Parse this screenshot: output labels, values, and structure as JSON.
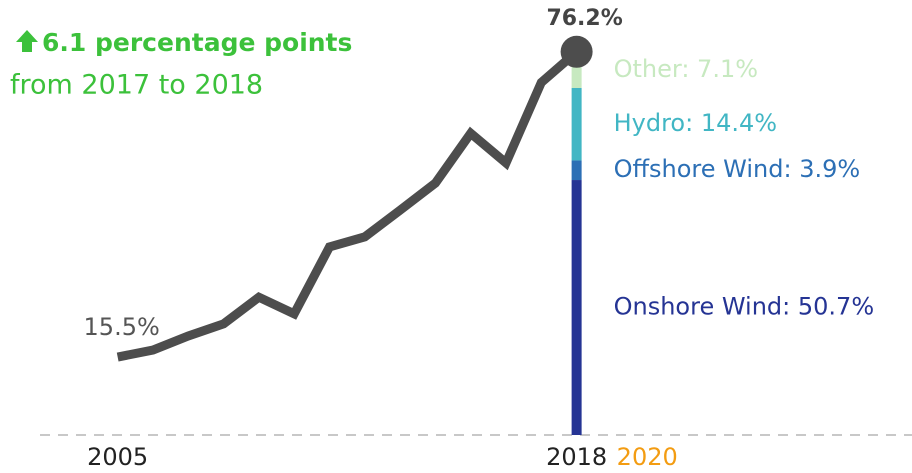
{
  "chart_data": {
    "type": "line",
    "annotation": {
      "headline": "6.1 percentage points",
      "subtext": "from 2017 to 2018",
      "color": "#3cc13b"
    },
    "x": [
      2005,
      2006,
      2007,
      2008,
      2009,
      2010,
      2011,
      2012,
      2013,
      2014,
      2015,
      2016,
      2017,
      2018
    ],
    "series": [
      {
        "color": "#4d4d4d",
        "values": [
          15.5,
          16.9,
          19.7,
          22.1,
          27.4,
          24.1,
          37.4,
          39.4,
          44.7,
          50.1,
          60.0,
          54.1,
          70.1,
          76.2
        ],
        "value_labels": [
          "15.5%",
          null,
          null,
          null,
          null,
          null,
          null,
          null,
          null,
          null,
          null,
          null,
          null,
          "76.2%"
        ]
      }
    ],
    "stack": {
      "x": 2018,
      "segments": [
        {
          "label": "Onshore Wind: 50.7%",
          "value": 50.7,
          "color": "#253494"
        },
        {
          "label": "Offshore Wind: 3.9%",
          "value": 3.9,
          "color": "#2c6fb5"
        },
        {
          "label": "Hydro: 14.4%",
          "value": 14.4,
          "color": "#41b6c4"
        },
        {
          "label": "Other: 7.1%",
          "value": 7.1,
          "color": "#c7e9c0"
        }
      ]
    },
    "xlim": [
      2002.8,
      2027.5
    ],
    "xticks": [
      2005,
      2018,
      2020
    ],
    "xtick_colors": [
      "#222222",
      "#222222",
      "#f39c12"
    ],
    "ylim": [
      0,
      86.5
    ]
  }
}
